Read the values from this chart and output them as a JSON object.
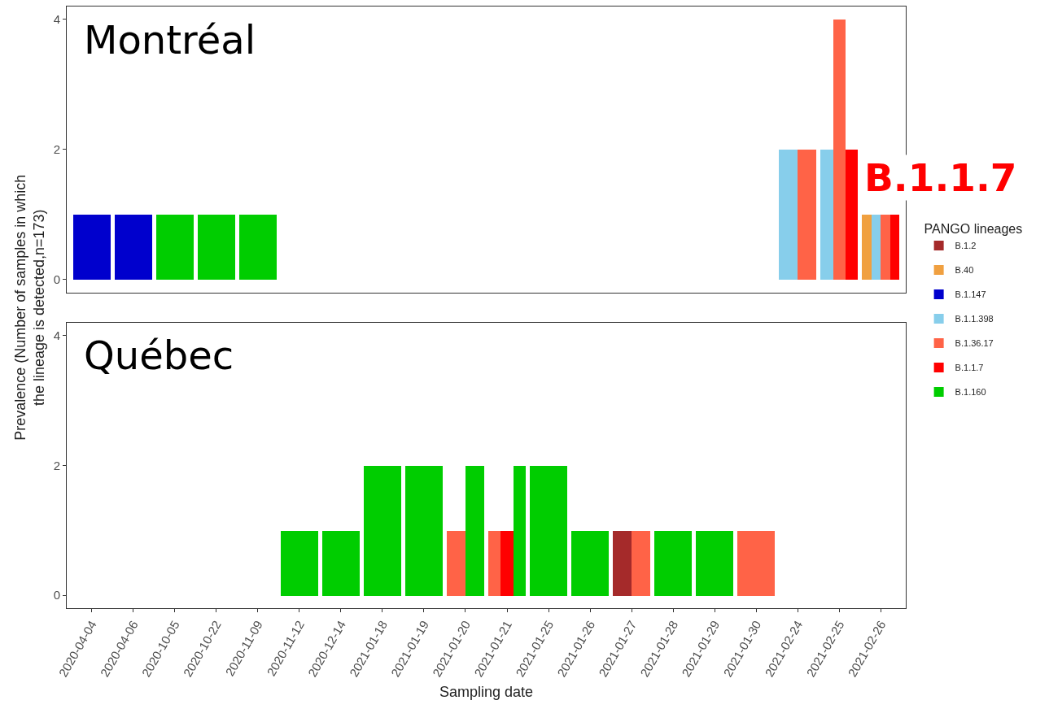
{
  "chart_data": [
    {
      "type": "bar",
      "title": "Montréal",
      "ylabel": "Prevalence (Number of samples in which\nthe lineage is detected,n=173)",
      "legend": "right",
      "legend_title": "PANGO lineages",
      "annotations": [
        "B.1.1.7"
      ],
      "tick_labels": "y",
      "grid": false,
      "categories": [
        "2020-04-04",
        "2020-04-06",
        "2020-10-05",
        "2020-10-22",
        "2020-11-09",
        "2020-11-12",
        "2020-12-14",
        "2021-01-18",
        "2021-01-19",
        "2021-01-20",
        "2021-01-21",
        "2021-01-25",
        "2021-01-26",
        "2021-01-27",
        "2021-01-28",
        "2021-01-29",
        "2021-01-30",
        "2021-02-24",
        "2021-02-25",
        "2021-02-26"
      ],
      "ylim": [
        -0.2,
        4.2
      ],
      "yticks": [
        0,
        2,
        4
      ],
      "series": [
        {
          "name": "B.1.2",
          "color": "#a52a2a",
          "values": [
            null,
            null,
            null,
            null,
            null,
            null,
            null,
            null,
            null,
            null,
            null,
            null,
            null,
            null,
            null,
            null,
            null,
            null,
            null,
            null
          ]
        },
        {
          "name": "B.40",
          "color": "#f0a040",
          "values": [
            null,
            null,
            null,
            null,
            null,
            null,
            null,
            null,
            null,
            null,
            null,
            null,
            null,
            null,
            null,
            null,
            null,
            null,
            null,
            1
          ]
        },
        {
          "name": "B.1.147",
          "color": "#0000cd",
          "values": [
            1,
            1,
            null,
            null,
            null,
            null,
            null,
            null,
            null,
            null,
            null,
            null,
            null,
            null,
            null,
            null,
            null,
            null,
            null,
            null
          ]
        },
        {
          "name": "B.1.1.398",
          "color": "#87ceeb",
          "values": [
            null,
            null,
            null,
            null,
            null,
            null,
            null,
            null,
            null,
            null,
            null,
            null,
            null,
            null,
            null,
            null,
            null,
            2,
            2,
            1
          ]
        },
        {
          "name": "B.1.36.17",
          "color": "#ff6347",
          "values": [
            null,
            null,
            null,
            null,
            null,
            null,
            null,
            null,
            null,
            null,
            null,
            null,
            null,
            null,
            null,
            null,
            null,
            2,
            4,
            1
          ]
        },
        {
          "name": "B.1.1.7",
          "color": "#ff0000",
          "values": [
            null,
            null,
            null,
            null,
            null,
            null,
            null,
            null,
            null,
            null,
            null,
            null,
            null,
            null,
            null,
            null,
            null,
            null,
            2,
            1
          ]
        },
        {
          "name": "B.1.160",
          "color": "#00cd00",
          "values": [
            null,
            null,
            1,
            1,
            1,
            null,
            null,
            null,
            null,
            null,
            null,
            null,
            null,
            null,
            null,
            null,
            null,
            null,
            null,
            null
          ]
        }
      ]
    },
    {
      "type": "bar",
      "title": "Québec",
      "xlabel": "Sampling date",
      "grid": false,
      "categories": [
        "2020-04-04",
        "2020-04-06",
        "2020-10-05",
        "2020-10-22",
        "2020-11-09",
        "2020-11-12",
        "2020-12-14",
        "2021-01-18",
        "2021-01-19",
        "2021-01-20",
        "2021-01-21",
        "2021-01-25",
        "2021-01-26",
        "2021-01-27",
        "2021-01-28",
        "2021-01-29",
        "2021-01-30",
        "2021-02-24",
        "2021-02-25",
        "2021-02-26"
      ],
      "ylim": [
        -0.2,
        4.2
      ],
      "yticks": [
        0,
        2,
        4
      ],
      "series": [
        {
          "color": "#a52a2a",
          "values": [
            null,
            null,
            null,
            null,
            null,
            null,
            null,
            null,
            null,
            null,
            null,
            null,
            null,
            1,
            null,
            null,
            null,
            null,
            null,
            null
          ]
        },
        {
          "color": "#ff6347",
          "values": [
            null,
            null,
            null,
            null,
            null,
            null,
            null,
            null,
            null,
            1,
            1,
            null,
            null,
            1,
            null,
            null,
            1,
            null,
            null,
            null
          ]
        },
        {
          "color": "#ff0000",
          "values": [
            null,
            null,
            null,
            null,
            null,
            null,
            null,
            null,
            null,
            null,
            1,
            null,
            null,
            null,
            null,
            null,
            null,
            null,
            null,
            null
          ]
        },
        {
          "color": "#00cd00",
          "values": [
            null,
            null,
            null,
            null,
            null,
            1,
            1,
            2,
            2,
            2,
            2,
            2,
            1,
            null,
            1,
            1,
            null,
            null,
            null,
            null
          ]
        }
      ]
    }
  ]
}
